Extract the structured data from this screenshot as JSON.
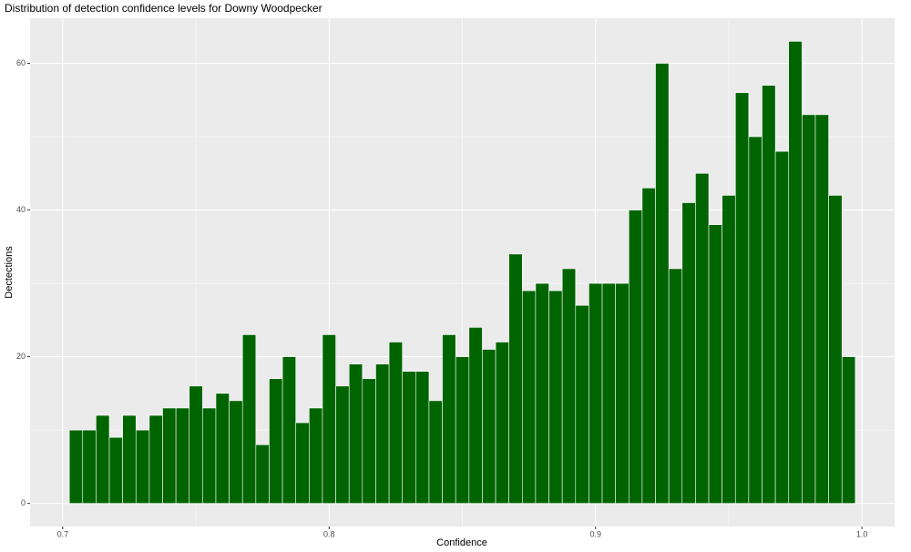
{
  "chart_data": {
    "type": "histogram",
    "title": "Distribution of detection confidence levels for Downy Woodpecker",
    "x_label": "Confidence",
    "y_label": "Dectections",
    "bins": [
      0.7025,
      0.7075,
      0.7125,
      0.7175,
      0.7225,
      0.7275,
      0.7325,
      0.7375,
      0.7425,
      0.7475,
      0.7525,
      0.7575,
      0.7625,
      0.7675,
      0.7725,
      0.7775,
      0.7825,
      0.7875,
      0.7925,
      0.7975,
      0.8025,
      0.8075,
      0.8125,
      0.8175,
      0.8225,
      0.8275,
      0.8325,
      0.8375,
      0.8425,
      0.8475,
      0.8525,
      0.8575,
      0.8625,
      0.8675,
      0.8725,
      0.8775,
      0.8825,
      0.8875,
      0.8925,
      0.8975,
      0.9025,
      0.9075,
      0.9125,
      0.9175,
      0.9225,
      0.9275,
      0.9325,
      0.9375,
      0.9425,
      0.9475,
      0.9525,
      0.9575,
      0.9625,
      0.9675,
      0.9725,
      0.9775,
      0.9825,
      0.9875,
      0.9925,
      0.9975
    ],
    "counts": [
      10,
      10,
      12,
      9,
      12,
      10,
      12,
      13,
      13,
      16,
      13,
      15,
      14,
      23,
      8,
      17,
      20,
      11,
      13,
      23,
      16,
      19,
      17,
      19,
      22,
      18,
      18,
      14,
      23,
      20,
      24,
      21,
      22,
      34,
      29,
      30,
      29,
      32,
      27,
      30,
      30,
      30,
      40,
      43,
      60,
      32,
      41,
      45,
      38,
      42,
      56,
      50,
      57,
      48,
      63,
      53,
      53,
      42,
      20
    ],
    "color": "#006400",
    "edge_color": "#ffffff",
    "xlim": [
      0.68775,
      1.01225
    ],
    "ylim": [
      -3.15,
      66.15
    ],
    "xticks": [
      0.7,
      0.8,
      0.9,
      {
        "value": 1,
        "label": "1.0"
      }
    ],
    "yticks": [
      0,
      20,
      40,
      60
    ],
    "x_minor_breaks": [
      0.75,
      0.85,
      0.95
    ],
    "y_minor_breaks": [
      10,
      30,
      50
    ],
    "grid": true
  }
}
